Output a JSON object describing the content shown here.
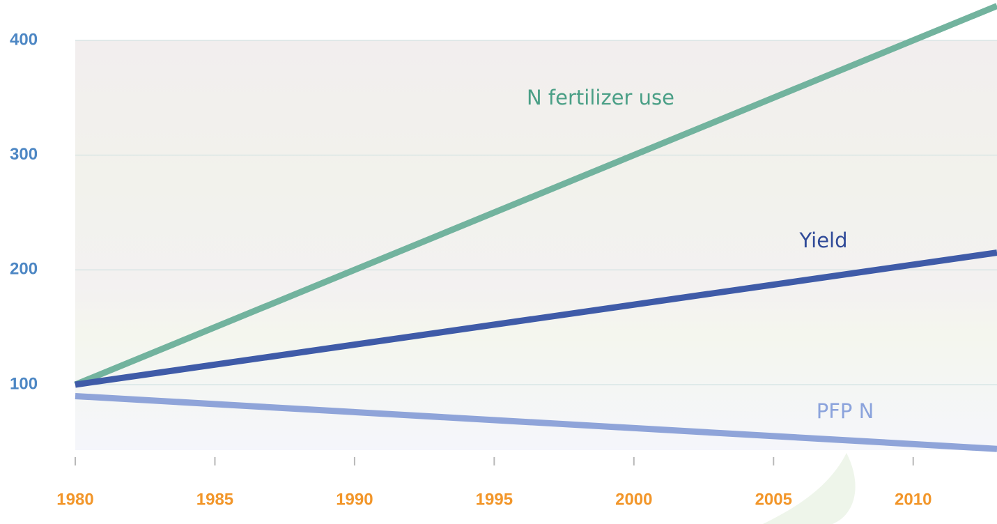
{
  "chart_data": {
    "type": "line",
    "x": [
      1980,
      2013
    ],
    "series": [
      {
        "name": "N fertilizer use",
        "color": "#72b39e",
        "label_color": "#4a9f86",
        "values": [
          100,
          430
        ]
      },
      {
        "name": "Yield",
        "color": "#3f5ba8",
        "label_color": "#2f4a98",
        "values": [
          100,
          215
        ]
      },
      {
        "name": "PFP N",
        "color": "#8fa4d9",
        "label_color": "#8ba3dc",
        "values": [
          90,
          44
        ]
      }
    ],
    "xlim": [
      1980,
      2013
    ],
    "xticks": [
      1980,
      1985,
      1990,
      1995,
      2000,
      2005,
      2010
    ],
    "ylim": [
      40,
      430
    ],
    "yticks": [
      100,
      200,
      300,
      400
    ],
    "grid": true
  }
}
